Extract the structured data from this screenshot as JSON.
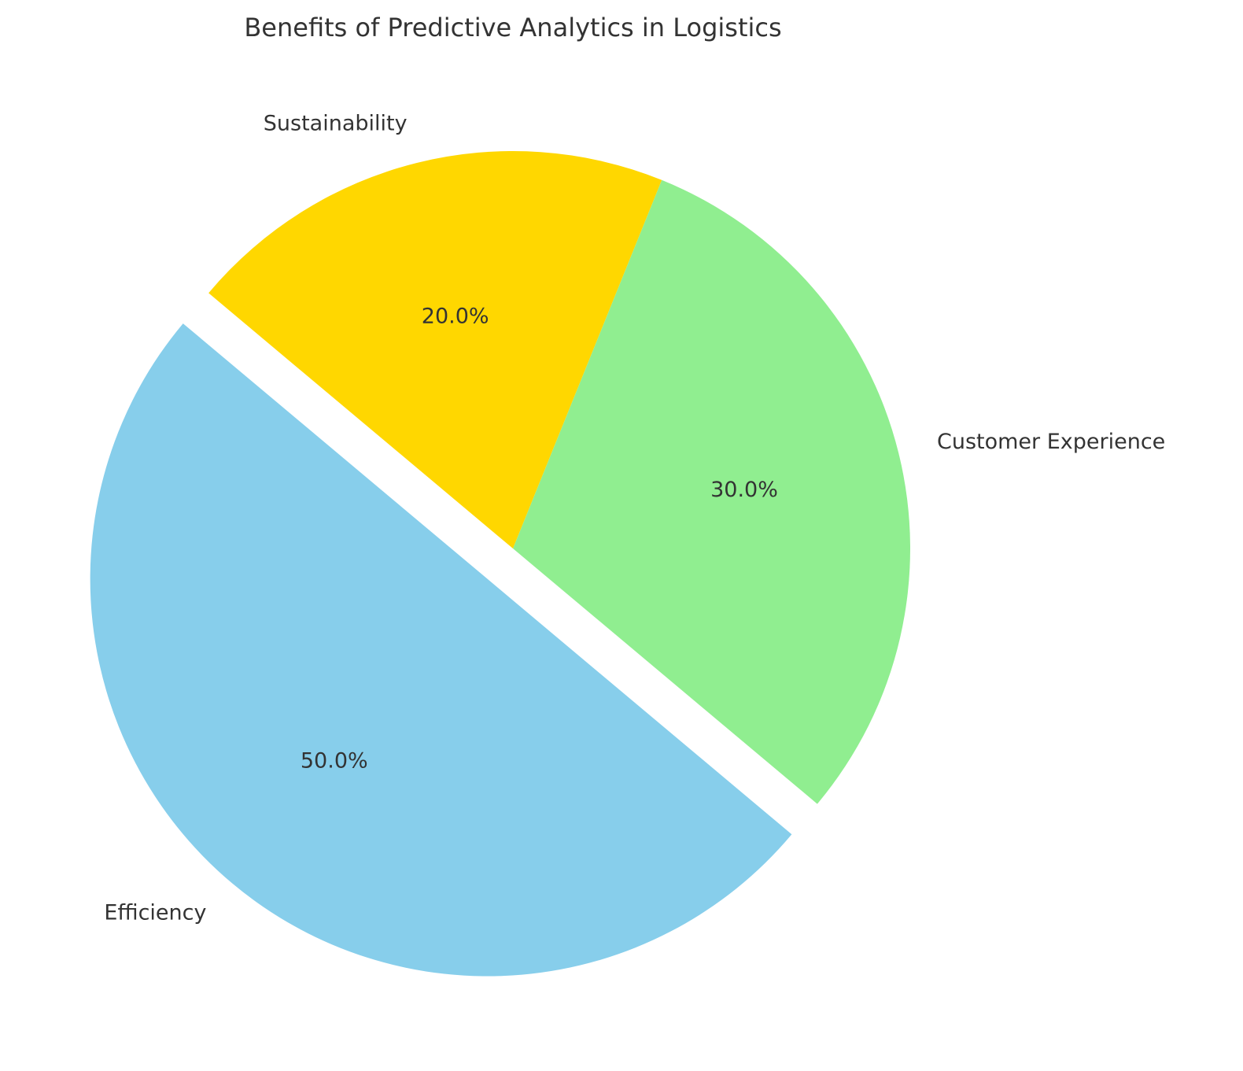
{
  "chart_data": {
    "type": "pie",
    "title": "Benefits of Predictive Analytics in Logistics",
    "categories": [
      "Efficiency",
      "Customer Experience",
      "Sustainability"
    ],
    "values": [
      50,
      30,
      20
    ],
    "value_labels": [
      "50.0%",
      "30.0%",
      "20.0%"
    ],
    "colors": [
      "#87ceeb",
      "#90ee90",
      "#ffd700"
    ],
    "explode": [
      0.1,
      0,
      0
    ],
    "start_angle": 140
  }
}
